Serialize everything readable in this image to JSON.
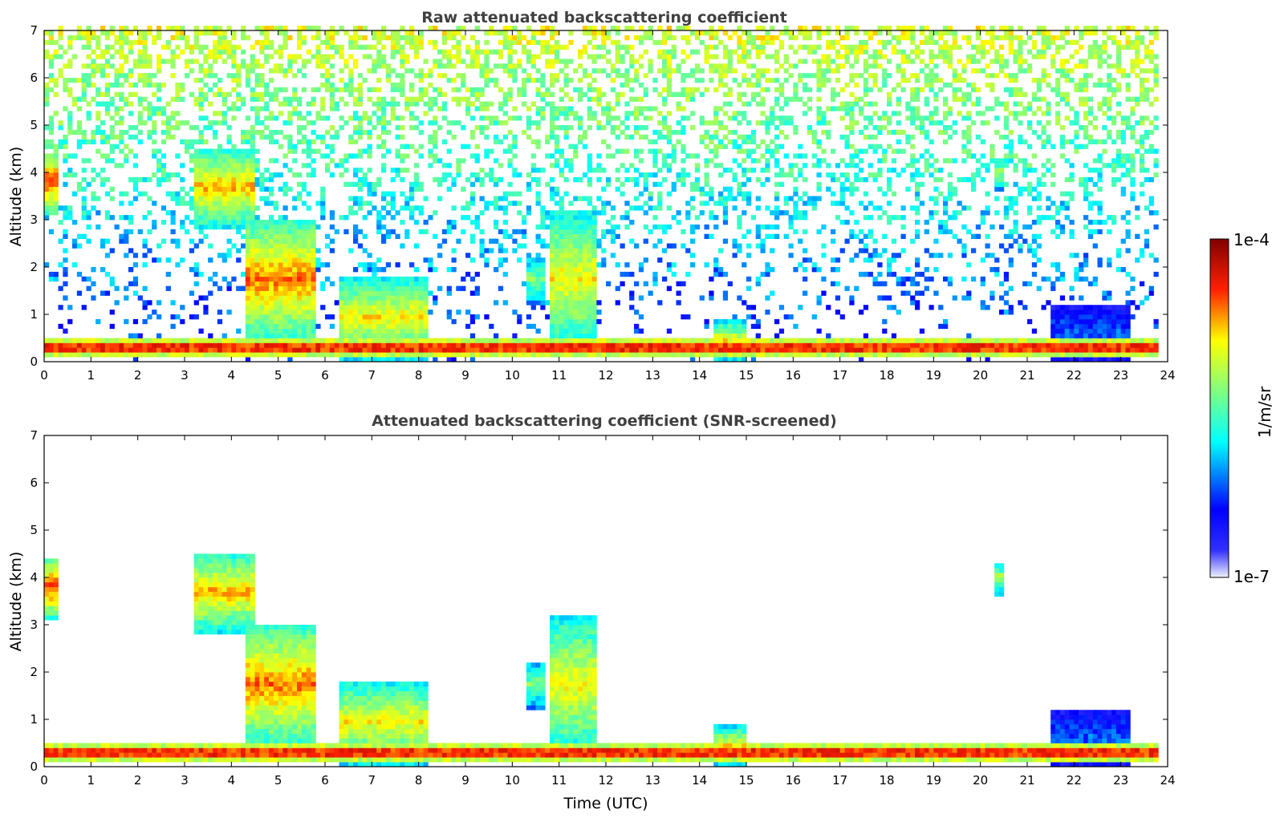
{
  "figure": {
    "background": "#ffffff"
  },
  "chart_data": [
    {
      "type": "heatmap",
      "title": "Raw attenuated backscattering coefficient",
      "xlabel": "",
      "ylabel": "Altitude (km)",
      "xlim": [
        0,
        24
      ],
      "ylim": [
        0,
        7
      ],
      "xticks": [
        "0",
        "1",
        "2",
        "3",
        "4",
        "5",
        "6",
        "7",
        "8",
        "9",
        "10",
        "11",
        "12",
        "13",
        "14",
        "15",
        "16",
        "17",
        "18",
        "19",
        "20",
        "21",
        "22",
        "23",
        "24"
      ],
      "yticks": [
        "0",
        "1",
        "2",
        "3",
        "4",
        "5",
        "6",
        "7"
      ],
      "data_end_time": 23.75,
      "noise_level": 0.45,
      "features": [
        {
          "t0": 0.0,
          "t1": 0.3,
          "h0": 3.1,
          "h1": 4.4,
          "v": 0.85
        },
        {
          "t0": 3.2,
          "t1": 4.5,
          "h0": 2.8,
          "h1": 4.5,
          "v": 0.75
        },
        {
          "t0": 4.3,
          "t1": 5.7,
          "h0": 0.4,
          "h1": 3.0,
          "v": 0.8
        },
        {
          "t0": 6.2,
          "t1": 8.1,
          "h0": 0.0,
          "h1": 1.8,
          "v": 0.7
        },
        {
          "t0": 10.2,
          "t1": 10.6,
          "h0": 1.2,
          "h1": 2.2,
          "v": 0.55
        },
        {
          "t0": 10.7,
          "t1": 11.7,
          "h0": 0.2,
          "h1": 3.2,
          "v": 0.7
        },
        {
          "t0": 14.2,
          "t1": 14.9,
          "h0": 0.0,
          "h1": 0.8,
          "v": 0.7
        },
        {
          "t0": 20.3,
          "t1": 20.5,
          "h0": 3.6,
          "h1": 4.3,
          "v": 0.6
        },
        {
          "t0": 0.0,
          "t1": 23.75,
          "h0": 0.05,
          "h1": 0.45,
          "v": 0.95
        },
        {
          "t0": 21.5,
          "t1": 23.2,
          "h0": 0.0,
          "h1": 1.1,
          "v": 0.28
        }
      ]
    },
    {
      "type": "heatmap",
      "title": "Attenuated backscattering coefficient (SNR-screened)",
      "xlabel": "Time (UTC)",
      "ylabel": "Altitude (km)",
      "xlim": [
        0,
        24
      ],
      "ylim": [
        0,
        7
      ],
      "xticks": [
        "0",
        "1",
        "2",
        "3",
        "4",
        "5",
        "6",
        "7",
        "8",
        "9",
        "10",
        "11",
        "12",
        "13",
        "14",
        "15",
        "16",
        "17",
        "18",
        "19",
        "20",
        "21",
        "22",
        "23",
        "24"
      ],
      "yticks": [
        "0",
        "1",
        "2",
        "3",
        "4",
        "5",
        "6",
        "7"
      ],
      "data_end_time": 23.75,
      "noise_level": 0.0,
      "features": [
        {
          "t0": 0.0,
          "t1": 0.3,
          "h0": 3.1,
          "h1": 4.4,
          "v": 0.85
        },
        {
          "t0": 3.2,
          "t1": 4.5,
          "h0": 2.8,
          "h1": 4.5,
          "v": 0.75
        },
        {
          "t0": 4.3,
          "t1": 5.7,
          "h0": 0.4,
          "h1": 3.0,
          "v": 0.8
        },
        {
          "t0": 6.2,
          "t1": 8.1,
          "h0": 0.0,
          "h1": 1.8,
          "v": 0.7
        },
        {
          "t0": 10.2,
          "t1": 10.6,
          "h0": 1.2,
          "h1": 2.2,
          "v": 0.55
        },
        {
          "t0": 10.7,
          "t1": 11.7,
          "h0": 0.2,
          "h1": 3.2,
          "v": 0.7
        },
        {
          "t0": 14.2,
          "t1": 14.9,
          "h0": 0.0,
          "h1": 0.8,
          "v": 0.7
        },
        {
          "t0": 20.3,
          "t1": 20.5,
          "h0": 3.6,
          "h1": 4.3,
          "v": 0.6
        },
        {
          "t0": 0.0,
          "t1": 23.75,
          "h0": 0.05,
          "h1": 0.45,
          "v": 0.95
        },
        {
          "t0": 21.5,
          "t1": 23.2,
          "h0": 0.0,
          "h1": 1.1,
          "v": 0.28
        }
      ]
    }
  ],
  "colorbar": {
    "label": "1/m/sr",
    "max_label": "1e-4",
    "min_label": "1e-7",
    "scale": "log",
    "range": [
      1e-07,
      0.0001
    ],
    "colormap": [
      "#f0f0ff",
      "#0000ff",
      "#00ffff",
      "#ffff00",
      "#ff0000",
      "#800000"
    ]
  }
}
